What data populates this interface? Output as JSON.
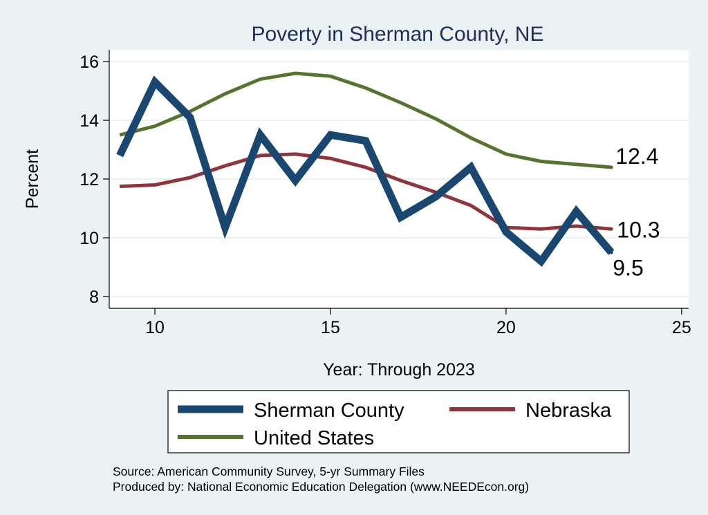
{
  "chart_data": {
    "type": "line",
    "title": "Poverty in Sherman County, NE",
    "xlabel": "Year: Through 2023",
    "ylabel": "Percent",
    "xlim": [
      8.7,
      25.2
    ],
    "ylim": [
      7.6,
      16.4
    ],
    "x_ticks": [
      10,
      15,
      20,
      25
    ],
    "y_ticks": [
      8,
      10,
      12,
      14,
      16
    ],
    "grid": "horizontal",
    "legend_position": "bottom",
    "series": [
      {
        "name": "Sherman County",
        "color": "#1a476f",
        "x": [
          9,
          10,
          11,
          12,
          13,
          14,
          15,
          16,
          17,
          18,
          19,
          20,
          21,
          22,
          23
        ],
        "values": [
          12.8,
          15.3,
          14.1,
          10.35,
          13.5,
          11.95,
          13.5,
          13.3,
          10.7,
          11.4,
          12.4,
          10.2,
          9.2,
          10.9,
          9.5
        ],
        "end_label": "9.5"
      },
      {
        "name": "Nebraska",
        "color": "#90353b",
        "x": [
          9,
          10,
          11,
          12,
          13,
          14,
          15,
          16,
          17,
          18,
          19,
          20,
          21,
          22,
          23
        ],
        "values": [
          11.75,
          11.8,
          12.05,
          12.45,
          12.8,
          12.85,
          12.7,
          12.4,
          11.95,
          11.55,
          11.1,
          10.35,
          10.3,
          10.4,
          10.3
        ],
        "end_label": "10.3"
      },
      {
        "name": "United States",
        "color": "#55752f",
        "x": [
          9,
          10,
          11,
          12,
          13,
          14,
          15,
          16,
          17,
          18,
          19,
          20,
          21,
          22,
          23
        ],
        "values": [
          13.5,
          13.8,
          14.3,
          14.9,
          15.4,
          15.6,
          15.5,
          15.1,
          14.6,
          14.05,
          13.4,
          12.85,
          12.6,
          12.5,
          12.4
        ],
        "end_label": "12.4"
      }
    ]
  },
  "footer": {
    "source": "Source: American Community Survey, 5-yr Summary Files",
    "produced_by": "Produced by: National Economic Education Delegation (www.NEEDEcon.org)"
  }
}
